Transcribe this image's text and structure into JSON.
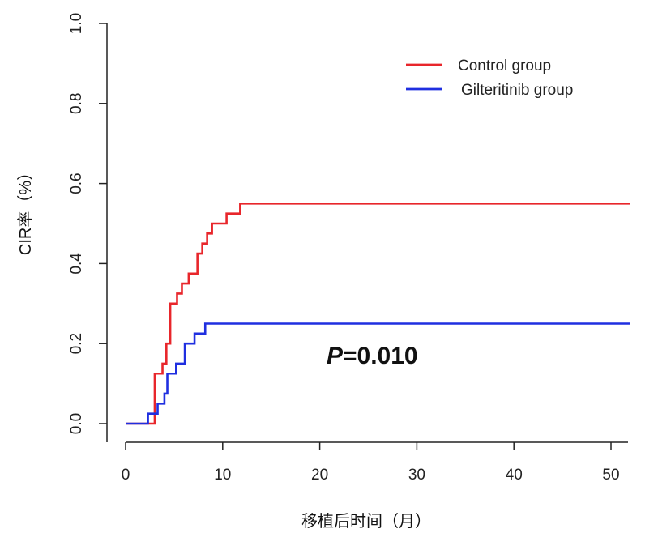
{
  "chart_data": {
    "type": "line",
    "title": "",
    "xlabel": "移植后时间（月）",
    "ylabel": "CIR率（%）",
    "xlim": [
      0,
      52
    ],
    "ylim": [
      0.0,
      1.0
    ],
    "xticks": [
      0,
      10,
      20,
      30,
      40,
      50
    ],
    "xtick_labels": [
      "0",
      "10",
      "20",
      "30",
      "40",
      "50"
    ],
    "yticks": [
      0.0,
      0.2,
      0.4,
      0.6,
      0.8,
      1.0
    ],
    "ytick_labels": [
      "0.0",
      "0.2",
      "0.4",
      "0.6",
      "0.8",
      "1.0"
    ],
    "grid": false,
    "legend_position": "top-right",
    "annotation": {
      "italic_part": "P",
      "rest": "=0.010"
    },
    "series": [
      {
        "name": "Control group",
        "color": "#e8262b",
        "step": true,
        "x": [
          0,
          3.0,
          3.0,
          3.8,
          4.2,
          4.6,
          5.3,
          5.8,
          6.5,
          7.4,
          7.9,
          8.4,
          8.9,
          10.4,
          11.8,
          52
        ],
        "y": [
          0.0,
          0.0,
          0.125,
          0.15,
          0.2,
          0.3,
          0.325,
          0.35,
          0.375,
          0.425,
          0.45,
          0.475,
          0.5,
          0.525,
          0.55,
          0.55
        ]
      },
      {
        "name": "Gilteritinib group",
        "color": "#1f2fe0",
        "step": true,
        "x": [
          0,
          2.3,
          2.9,
          3.3,
          4.0,
          4.3,
          5.2,
          6.1,
          7.1,
          8.2,
          52
        ],
        "y": [
          0.0,
          0.025,
          0.025,
          0.05,
          0.075,
          0.125,
          0.15,
          0.2,
          0.225,
          0.25,
          0.25
        ]
      }
    ]
  }
}
